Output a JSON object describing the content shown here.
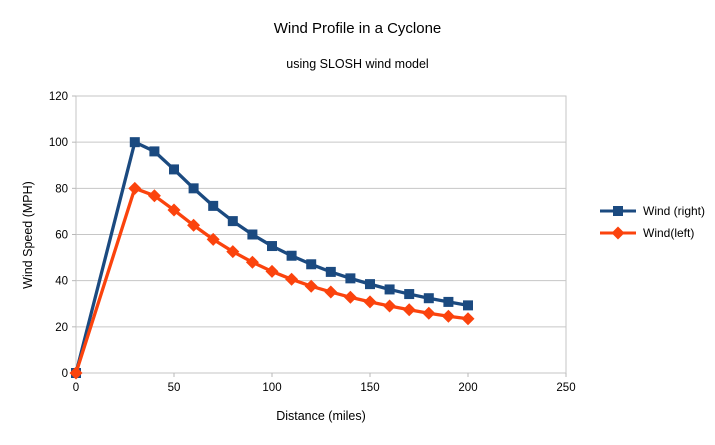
{
  "title": "Wind Profile in a Cyclone",
  "subtitle": "using SLOSH wind model",
  "chart_data": {
    "type": "line",
    "title": "Wind Profile in a Cyclone",
    "subtitle": "using SLOSH wind model",
    "xlabel": "Distance (miles)",
    "ylabel": "Wind Speed (MPH)",
    "xlim": [
      0,
      250
    ],
    "ylim": [
      0,
      120
    ],
    "xticks": [
      0,
      50,
      100,
      150,
      200,
      250
    ],
    "yticks": [
      0,
      20,
      40,
      60,
      80,
      100,
      120
    ],
    "grid": "horizontal",
    "legend_position": "right",
    "x": [
      0,
      30,
      40,
      50,
      60,
      70,
      80,
      90,
      100,
      110,
      120,
      130,
      140,
      150,
      160,
      170,
      180,
      190,
      200
    ],
    "series": [
      {
        "name": "Wind (right)",
        "color": "#1B4A80",
        "marker": "square",
        "values": [
          0,
          100,
          96,
          88.2,
          80,
          72.4,
          65.8,
          60,
          55,
          50.8,
          47.1,
          43.8,
          41,
          38.5,
          36.2,
          34.2,
          32.4,
          30.8,
          29.3
        ]
      },
      {
        "name": "Wind(left)",
        "color": "#FB430D",
        "marker": "diamond",
        "values": [
          0,
          80,
          76.8,
          70.6,
          64,
          57.9,
          52.6,
          48,
          44,
          40.6,
          37.6,
          35.1,
          32.8,
          30.8,
          29,
          27.4,
          25.9,
          24.6,
          23.5
        ]
      }
    ],
    "colors": {
      "grid": "#C6C6C6",
      "axis": "#B8B8B8",
      "text": "#000000",
      "background": "#FFFFFF"
    }
  }
}
